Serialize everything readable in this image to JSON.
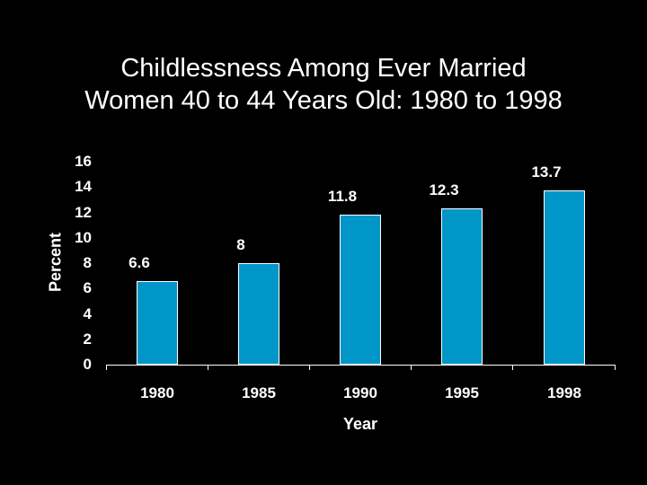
{
  "chart_data": {
    "type": "bar",
    "title": "Childlessness Among Ever Married Women 40 to 44 Years Old: 1980 to 1998",
    "title_lines": [
      "Childlessness Among Ever Married",
      "Women 40 to 44 Years Old: 1980 to 1998"
    ],
    "xlabel": "Year",
    "ylabel": "Percent",
    "categories": [
      "1980",
      "1985",
      "1990",
      "1995",
      "1998"
    ],
    "values": [
      6.6,
      8,
      11.8,
      12.3,
      13.7
    ],
    "value_labels": [
      "6.6",
      "8",
      "11.8",
      "12.3",
      "13.7"
    ],
    "ylim": [
      0,
      16
    ],
    "yticks": [
      "0",
      "2",
      "4",
      "6",
      "8",
      "10",
      "12",
      "14",
      "16"
    ],
    "grid": false,
    "bar_color": "#0096c8",
    "background": "#000000"
  }
}
